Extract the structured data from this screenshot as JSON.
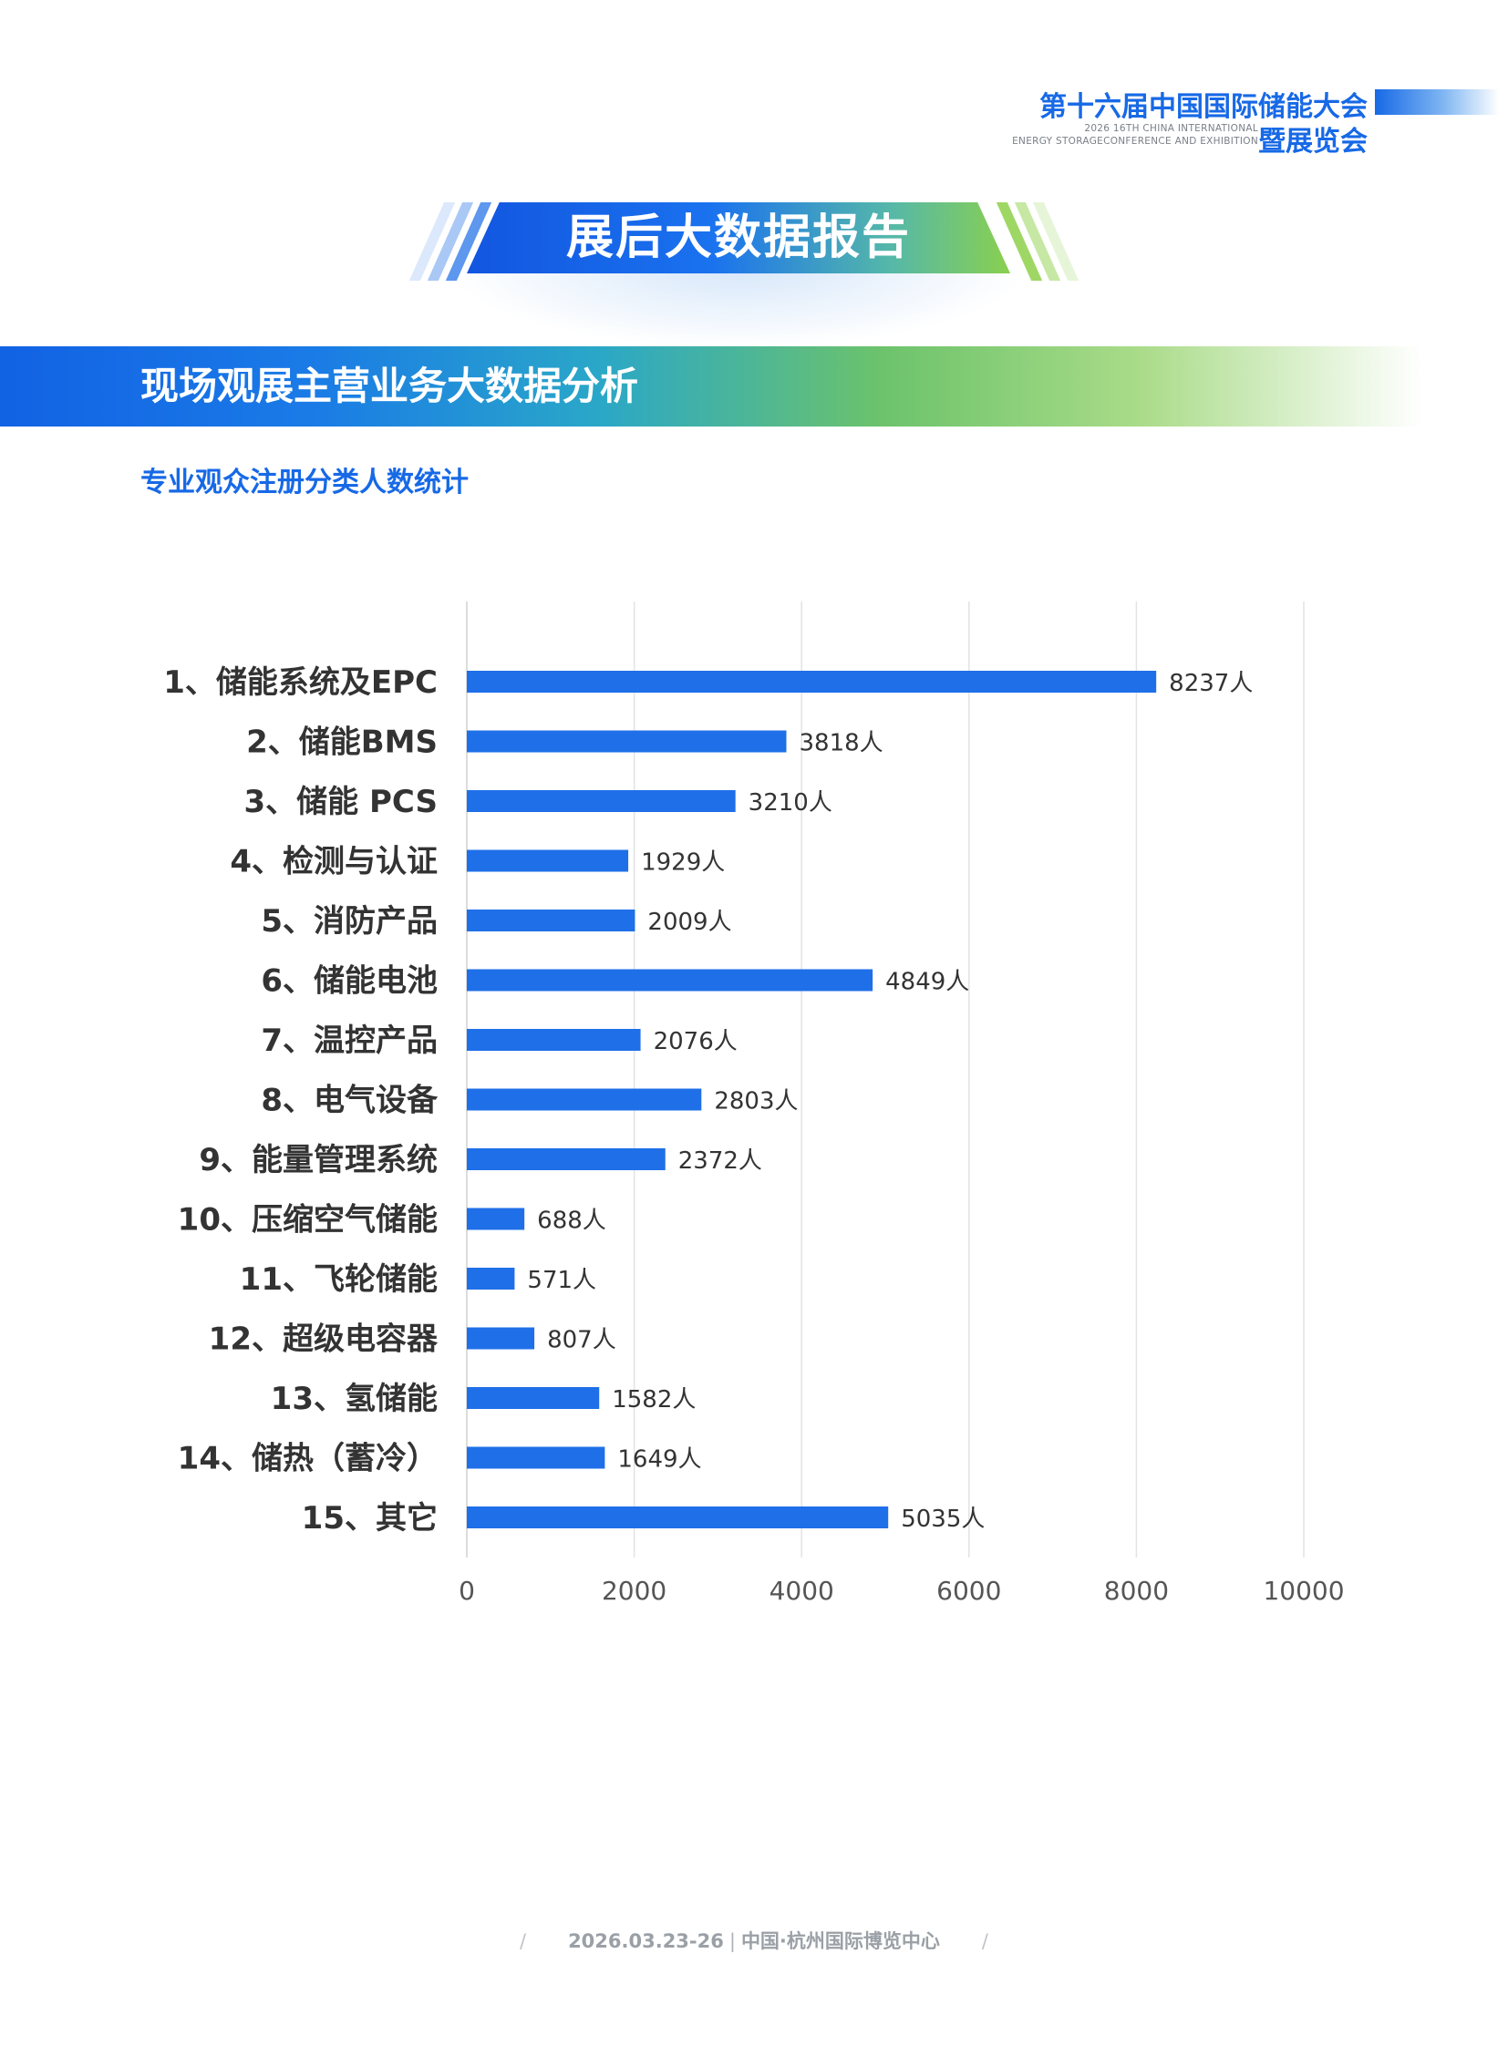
{
  "header": {
    "title": "第十六届中国国际储能大会",
    "subtitle": "暨展览会",
    "en_line1": "2026 16TH CHINA INTERNATIONAL",
    "en_line2": "ENERGY STORAGECONFERENCE AND EXHIBITION"
  },
  "banner": {
    "title": "展后大数据报告"
  },
  "section": {
    "title": "现场观展主营业务大数据分析",
    "subtitle": "专业观众注册分类人数统计"
  },
  "chart_data": {
    "type": "bar",
    "orientation": "horizontal",
    "categories": [
      "1、储能系统及EPC",
      "2、储能BMS",
      "3、储能 PCS",
      "4、检测与认证",
      "5、消防产品",
      "6、储能电池",
      "7、温控产品",
      "8、电气设备",
      "9、能量管理系统",
      "10、压缩空气储能",
      "11、飞轮储能",
      "12、超级电容器",
      "13、氢储能",
      "14、储热（蓄冷）",
      "15、其它"
    ],
    "values": [
      8237,
      3818,
      3210,
      1929,
      2009,
      4849,
      2076,
      2803,
      2372,
      688,
      571,
      807,
      1582,
      1649,
      5035
    ],
    "value_suffix": "人",
    "xlim": [
      0,
      10000
    ],
    "xticks": [
      0,
      2000,
      4000,
      6000,
      8000,
      10000
    ],
    "grid": true,
    "bar_color": "#1f6fe8"
  },
  "footer": {
    "date": "2026.03.23-26",
    "venue": "中国·杭州国际博览中心",
    "divider": "/"
  }
}
